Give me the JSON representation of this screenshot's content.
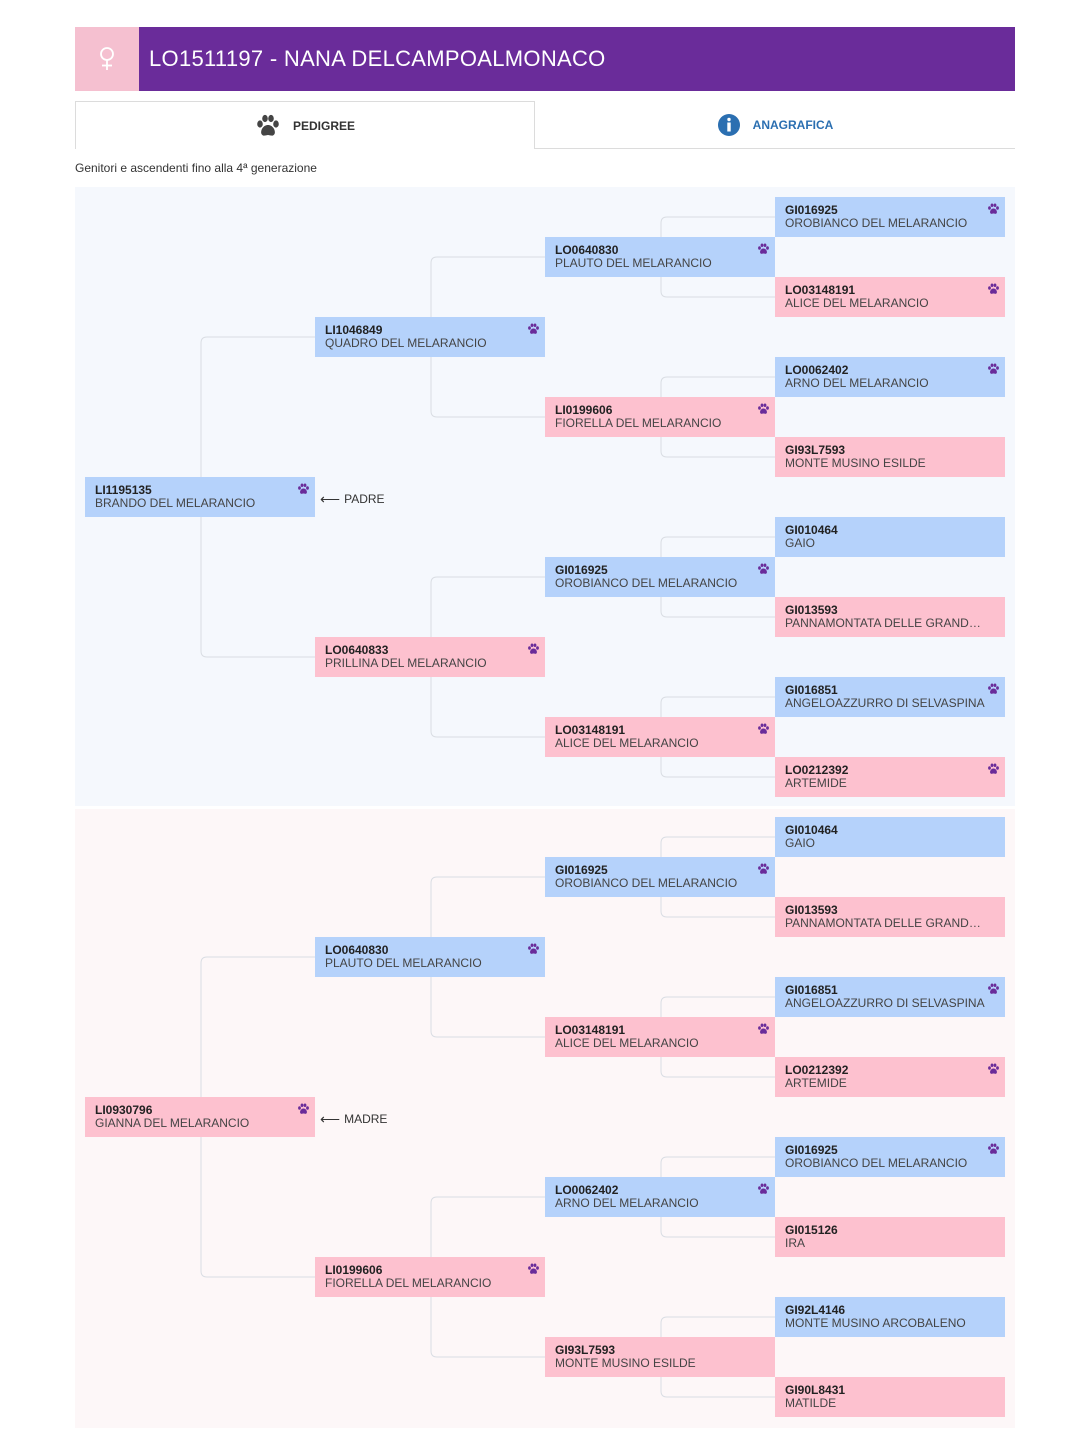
{
  "header": {
    "title": "LO1511197 - NANA DELCAMPOALMONACO",
    "gender_icon": "female-icon",
    "accent": "#6a2c9a",
    "gender_color": "#f5c0d0"
  },
  "tabs": [
    {
      "label": "PEDIGREE",
      "icon": "paw-icon",
      "active": true
    },
    {
      "label": "ANAGRAFICA",
      "icon": "info-icon",
      "active": false
    }
  ],
  "subtitle": "Genitori e ascendenti fino alla 4ª generazione",
  "labels": {
    "padre": "PADRE",
    "madre": "MADRE"
  },
  "colors": {
    "male": "#b5d2fb",
    "female": "#fdc1cf",
    "paw": "#6a2c9a"
  },
  "sire": {
    "reg": "LI1195135",
    "name": "BRANDO DEL MELARANCIO",
    "sex": "m",
    "paw": true,
    "sire": {
      "reg": "LI1046849",
      "name": "QUADRO DEL MELARANCIO",
      "sex": "m",
      "paw": true,
      "sire": {
        "reg": "LO0640830",
        "name": "PLAUTO DEL MELARANCIO",
        "sex": "m",
        "paw": true,
        "sire": {
          "reg": "GI016925",
          "name": "OROBIANCO DEL MELARANCIO",
          "sex": "m",
          "paw": true
        },
        "dam": {
          "reg": "LO03148191",
          "name": "ALICE DEL MELARANCIO",
          "sex": "f",
          "paw": true
        }
      },
      "dam": {
        "reg": "LI0199606",
        "name": "FIORELLA DEL MELARANCIO",
        "sex": "f",
        "paw": true,
        "sire": {
          "reg": "LO0062402",
          "name": "ARNO DEL MELARANCIO",
          "sex": "m",
          "paw": true
        },
        "dam": {
          "reg": "GI93L7593",
          "name": "MONTE MUSINO ESILDE",
          "sex": "f",
          "paw": false
        }
      }
    },
    "dam": {
      "reg": "LO0640833",
      "name": "PRILLINA DEL MELARANCIO",
      "sex": "f",
      "paw": true,
      "sire": {
        "reg": "GI016925",
        "name": "OROBIANCO DEL MELARANCIO",
        "sex": "m",
        "paw": true,
        "sire": {
          "reg": "GI010464",
          "name": "GAIO",
          "sex": "m",
          "paw": false
        },
        "dam": {
          "reg": "GI013593",
          "name": "PANNAMONTATA DELLE GRANDES MU...",
          "sex": "f",
          "paw": false
        }
      },
      "dam": {
        "reg": "LO03148191",
        "name": "ALICE DEL MELARANCIO",
        "sex": "f",
        "paw": true,
        "sire": {
          "reg": "GI016851",
          "name": "ANGELOAZZURRO DI SELVASPINA",
          "sex": "m",
          "paw": true
        },
        "dam": {
          "reg": "LO0212392",
          "name": "ARTEMIDE",
          "sex": "f",
          "paw": true
        }
      }
    }
  },
  "dam": {
    "reg": "LI0930796",
    "name": "GIANNA DEL MELARANCIO",
    "sex": "f",
    "paw": true,
    "sire": {
      "reg": "LO0640830",
      "name": "PLAUTO DEL MELARANCIO",
      "sex": "m",
      "paw": true,
      "sire": {
        "reg": "GI016925",
        "name": "OROBIANCO DEL MELARANCIO",
        "sex": "m",
        "paw": true,
        "sire": {
          "reg": "GI010464",
          "name": "GAIO",
          "sex": "m",
          "paw": false
        },
        "dam": {
          "reg": "GI013593",
          "name": "PANNAMONTATA DELLE GRANDES MU...",
          "sex": "f",
          "paw": false
        }
      },
      "dam": {
        "reg": "LO03148191",
        "name": "ALICE DEL MELARANCIO",
        "sex": "f",
        "paw": true,
        "sire": {
          "reg": "GI016851",
          "name": "ANGELOAZZURRO DI SELVASPINA",
          "sex": "m",
          "paw": true
        },
        "dam": {
          "reg": "LO0212392",
          "name": "ARTEMIDE",
          "sex": "f",
          "paw": true
        }
      }
    },
    "dam": {
      "reg": "LI0199606",
      "name": "FIORELLA DEL MELARANCIO",
      "sex": "f",
      "paw": true,
      "sire": {
        "reg": "LO0062402",
        "name": "ARNO DEL MELARANCIO",
        "sex": "m",
        "paw": true,
        "sire": {
          "reg": "GI016925",
          "name": "OROBIANCO DEL MELARANCIO",
          "sex": "m",
          "paw": true
        },
        "dam": {
          "reg": "GI015126",
          "name": "IRA",
          "sex": "f",
          "paw": false
        }
      },
      "dam": {
        "reg": "GI93L7593",
        "name": "MONTE MUSINO ESILDE",
        "sex": "f",
        "paw": false,
        "sire": {
          "reg": "GI92L4146",
          "name": "MONTE MUSINO ARCOBALENO",
          "sex": "m",
          "paw": false
        },
        "dam": {
          "reg": "GI90L8431",
          "name": "MATILDE",
          "sex": "f",
          "paw": false
        }
      }
    }
  }
}
